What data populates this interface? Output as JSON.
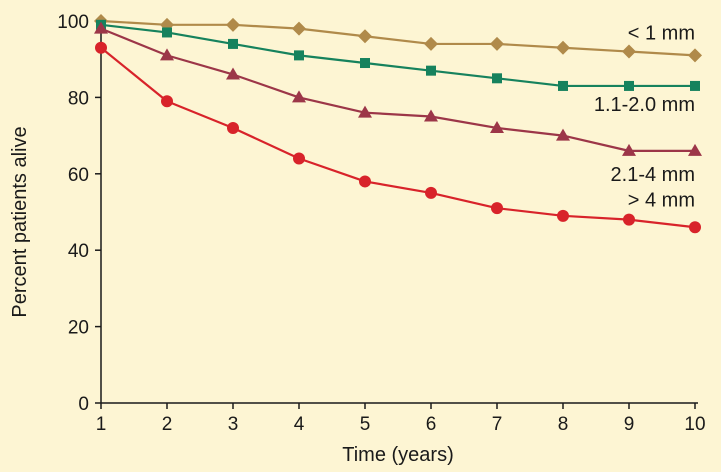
{
  "colors": {
    "background": "#fdf5d3",
    "axis": "#1a1a1a"
  },
  "chart_data": {
    "type": "line",
    "title": "",
    "xlabel": "Time (years)",
    "ylabel": "Percent patients alive",
    "x": [
      1,
      2,
      3,
      4,
      5,
      6,
      7,
      8,
      9,
      10
    ],
    "xlim": [
      1,
      10
    ],
    "ylim": [
      0,
      100
    ],
    "xticks": [
      "1",
      "2",
      "3",
      "4",
      "5",
      "6",
      "7",
      "8",
      "9",
      "10"
    ],
    "yticks": [
      "0",
      "20",
      "40",
      "60",
      "80",
      "100"
    ],
    "grid": false,
    "legend": "inline labels at right end of each line",
    "series": [
      {
        "name": "< 1 mm",
        "color": "#b08a4a",
        "marker": "diamond",
        "values": [
          100,
          99,
          99,
          98,
          96,
          94,
          94,
          93,
          92,
          91
        ]
      },
      {
        "name": "1.1-2.0 mm",
        "color": "#16825d",
        "marker": "square",
        "values": [
          99,
          97,
          94,
          91,
          89,
          87,
          85,
          83,
          83,
          83
        ]
      },
      {
        "name": "2.1-4 mm",
        "color": "#9c3648",
        "marker": "triangle",
        "values": [
          98,
          91,
          86,
          80,
          76,
          75,
          72,
          70,
          66,
          66
        ]
      },
      {
        "name": "> 4 mm",
        "color": "#d8232a",
        "marker": "circle",
        "values": [
          93,
          79,
          72,
          64,
          58,
          55,
          51,
          49,
          48,
          46
        ]
      }
    ]
  }
}
